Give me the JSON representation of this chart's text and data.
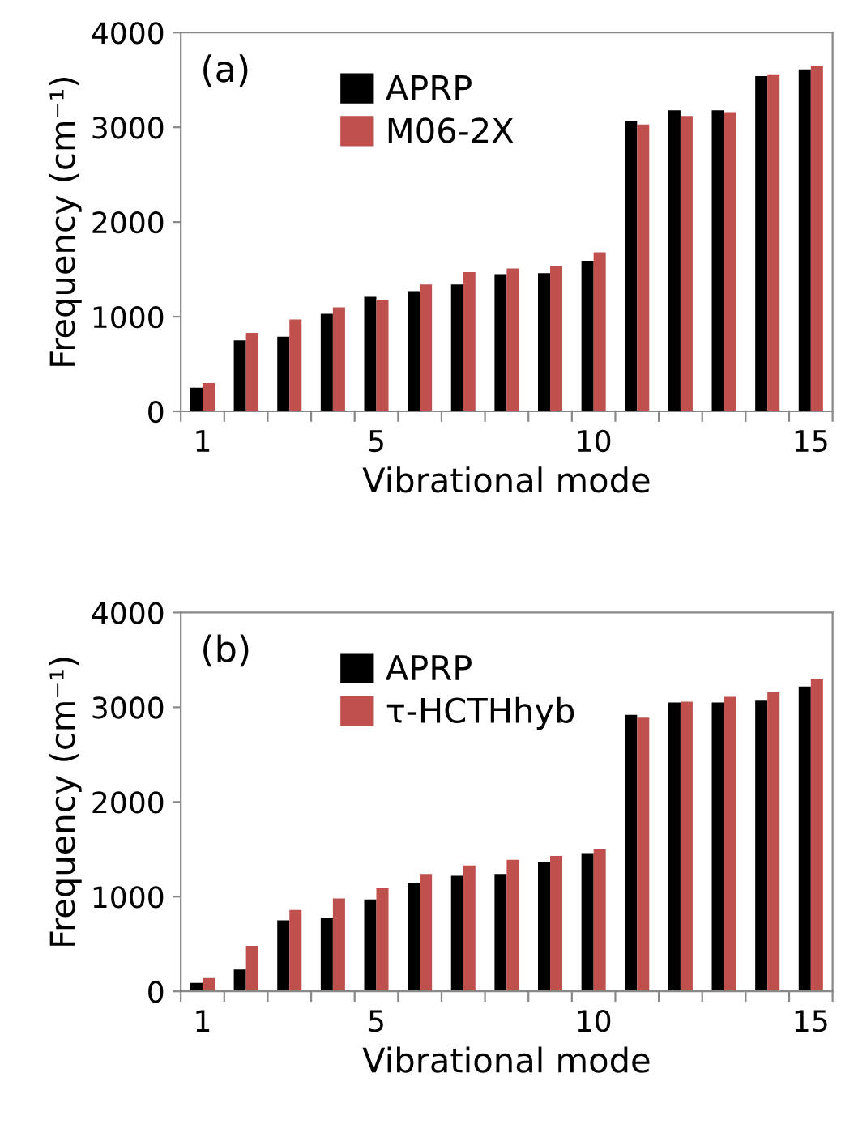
{
  "chart_data": [
    {
      "type": "bar",
      "xlabel": "Vibrational mode",
      "ylabel": "Frequency (cm⁻¹)",
      "annotations": [
        "(a)"
      ],
      "categories": [
        "1",
        null,
        null,
        null,
        "5",
        null,
        null,
        null,
        null,
        "10",
        null,
        null,
        null,
        null,
        "15"
      ],
      "series": [
        {
          "name": "APRP",
          "color": "#000000",
          "values": [
            250,
            750,
            790,
            1030,
            1210,
            1270,
            1340,
            1450,
            1460,
            1590,
            3070,
            3180,
            3180,
            3540,
            3610
          ]
        },
        {
          "name": "M06-2X",
          "color": "#c0504d",
          "values": [
            300,
            830,
            970,
            1100,
            1180,
            1340,
            1470,
            1510,
            1540,
            1680,
            3030,
            3120,
            3160,
            3560,
            3650
          ]
        }
      ],
      "ylim": [
        0,
        4000
      ],
      "yticks": [
        0,
        1000,
        2000,
        3000,
        4000
      ],
      "grid": false,
      "legend": "top left"
    },
    {
      "type": "bar",
      "xlabel": "Vibrational mode",
      "ylabel": "Frequency (cm⁻¹)",
      "annotations": [
        "(b)"
      ],
      "categories": [
        "1",
        null,
        null,
        null,
        "5",
        null,
        null,
        null,
        null,
        "10",
        null,
        null,
        null,
        null,
        "15"
      ],
      "series": [
        {
          "name": "APRP",
          "color": "#000000",
          "values": [
            90,
            230,
            750,
            780,
            970,
            1140,
            1220,
            1240,
            1370,
            1460,
            2920,
            3050,
            3050,
            3070,
            3220
          ]
        },
        {
          "name": "τ-HCTHhyb",
          "color": "#c0504d",
          "values": [
            140,
            480,
            860,
            980,
            1090,
            1240,
            1330,
            1390,
            1430,
            1500,
            2890,
            3060,
            3110,
            3160,
            3300
          ]
        }
      ],
      "ylim": [
        0,
        4000
      ],
      "yticks": [
        0,
        1000,
        2000,
        3000,
        4000
      ],
      "grid": false,
      "legend": "top left"
    }
  ]
}
